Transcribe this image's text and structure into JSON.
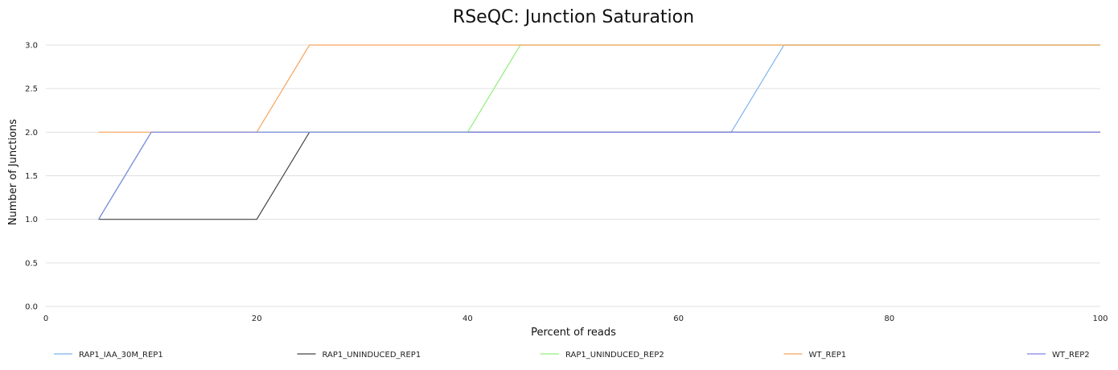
{
  "chart_data": {
    "type": "line",
    "title": "RSeQC: Junction Saturation",
    "xlabel": "Percent of reads",
    "ylabel": "Number of Junctions",
    "xlim": [
      0,
      100
    ],
    "ylim": [
      0,
      3.0
    ],
    "x_ticks": [
      0,
      20,
      40,
      60,
      80,
      100
    ],
    "y_ticks": [
      "0.0",
      "0.5",
      "1.0",
      "1.5",
      "2.0",
      "2.5",
      "3.0"
    ],
    "grid": "horizontal",
    "legend_position": "bottom",
    "series": [
      {
        "name": "RAP1_IAA_30M_REP1",
        "color": "#7cb5ec",
        "points": [
          [
            5,
            1
          ],
          [
            10,
            2
          ],
          [
            15,
            2
          ],
          [
            20,
            2
          ],
          [
            25,
            2
          ],
          [
            30,
            2
          ],
          [
            35,
            2
          ],
          [
            40,
            2
          ],
          [
            45,
            2
          ],
          [
            50,
            2
          ],
          [
            55,
            2
          ],
          [
            60,
            2
          ],
          [
            65,
            2
          ],
          [
            70,
            3
          ],
          [
            75,
            3
          ],
          [
            80,
            3
          ],
          [
            85,
            3
          ],
          [
            90,
            3
          ],
          [
            95,
            3
          ],
          [
            100,
            3
          ]
        ]
      },
      {
        "name": "RAP1_UNINDUCED_REP1",
        "color": "#434348",
        "points": [
          [
            5,
            1
          ],
          [
            10,
            1
          ],
          [
            15,
            1
          ],
          [
            20,
            1
          ],
          [
            25,
            2
          ],
          [
            30,
            2
          ],
          [
            35,
            2
          ],
          [
            40,
            2
          ],
          [
            45,
            2
          ],
          [
            50,
            2
          ],
          [
            55,
            2
          ],
          [
            60,
            2
          ],
          [
            65,
            2
          ],
          [
            70,
            2
          ],
          [
            75,
            2
          ],
          [
            80,
            2
          ],
          [
            85,
            2
          ],
          [
            90,
            2
          ],
          [
            95,
            2
          ],
          [
            100,
            2
          ]
        ]
      },
      {
        "name": "RAP1_UNINDUCED_REP2",
        "color": "#90ed7d",
        "points": [
          [
            5,
            1
          ],
          [
            10,
            2
          ],
          [
            15,
            2
          ],
          [
            20,
            2
          ],
          [
            25,
            2
          ],
          [
            30,
            2
          ],
          [
            35,
            2
          ],
          [
            40,
            2
          ],
          [
            45,
            3
          ],
          [
            50,
            3
          ],
          [
            55,
            3
          ],
          [
            60,
            3
          ],
          [
            65,
            3
          ],
          [
            70,
            3
          ],
          [
            75,
            3
          ],
          [
            80,
            3
          ],
          [
            85,
            3
          ],
          [
            90,
            3
          ],
          [
            95,
            3
          ],
          [
            100,
            3
          ]
        ]
      },
      {
        "name": "WT_REP1",
        "color": "#f7a35c",
        "points": [
          [
            5,
            2
          ],
          [
            10,
            2
          ],
          [
            15,
            2
          ],
          [
            20,
            2
          ],
          [
            25,
            3
          ],
          [
            30,
            3
          ],
          [
            35,
            3
          ],
          [
            40,
            3
          ],
          [
            45,
            3
          ],
          [
            50,
            3
          ],
          [
            55,
            3
          ],
          [
            60,
            3
          ],
          [
            65,
            3
          ],
          [
            70,
            3
          ],
          [
            75,
            3
          ],
          [
            80,
            3
          ],
          [
            85,
            3
          ],
          [
            90,
            3
          ],
          [
            95,
            3
          ],
          [
            100,
            3
          ]
        ]
      },
      {
        "name": "WT_REP2",
        "color": "#8085e9",
        "points": [
          [
            5,
            1
          ],
          [
            10,
            2
          ],
          [
            15,
            2
          ],
          [
            20,
            2
          ],
          [
            25,
            2
          ],
          [
            30,
            2
          ],
          [
            35,
            2
          ],
          [
            40,
            2
          ],
          [
            45,
            2
          ],
          [
            50,
            2
          ],
          [
            55,
            2
          ],
          [
            60,
            2
          ],
          [
            65,
            2
          ],
          [
            70,
            2
          ],
          [
            75,
            2
          ],
          [
            80,
            2
          ],
          [
            85,
            2
          ],
          [
            90,
            2
          ],
          [
            95,
            2
          ],
          [
            100,
            2
          ]
        ]
      }
    ]
  }
}
